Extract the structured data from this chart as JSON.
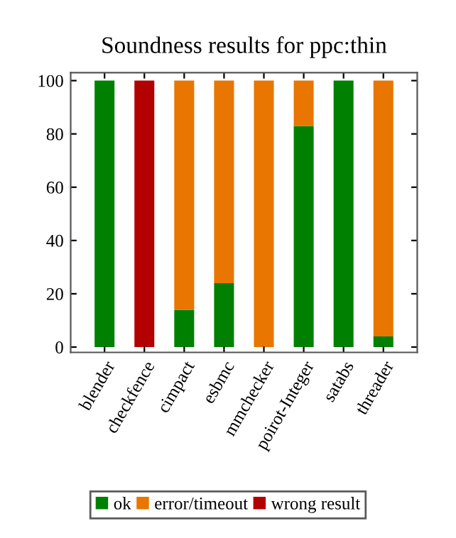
{
  "chart_data": {
    "type": "bar",
    "title": "Soundness results for ppc:thin",
    "categories": [
      "blender",
      "checkfence",
      "cimpact",
      "esbmc",
      "mmchecker",
      "poirot-Integer",
      "satabs",
      "threader"
    ],
    "stacked": true,
    "series": [
      {
        "name": "ok",
        "color": "#008000",
        "values": [
          100,
          0,
          14,
          24,
          0,
          83,
          100,
          4
        ]
      },
      {
        "name": "error/timeout",
        "color": "#e87600",
        "values": [
          0,
          0,
          86,
          76,
          100,
          17,
          0,
          96
        ]
      },
      {
        "name": "wrong result",
        "color": "#b30000",
        "values": [
          0,
          100,
          0,
          0,
          0,
          0,
          0,
          0
        ]
      }
    ],
    "ylim": [
      -2,
      103
    ],
    "yticks": [
      0,
      20,
      40,
      60,
      80,
      100
    ],
    "grid": false,
    "legend": "bottom"
  }
}
